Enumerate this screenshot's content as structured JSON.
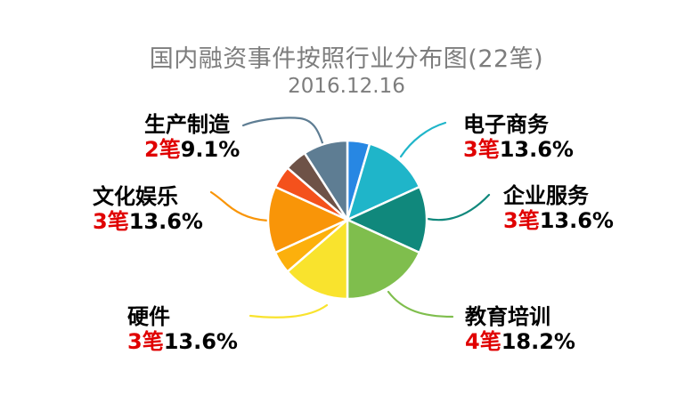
{
  "chart_data": {
    "type": "pie",
    "title": "国内融资事件按照行业分布图(22笔)",
    "subtitle": "2016.12.16",
    "total_count": 22,
    "unit": "笔",
    "legend_position": "outside-callout",
    "text_colors": {
      "title": "#7d7d7d",
      "label": "#000000",
      "count": "#e00000"
    },
    "slices": [
      {
        "label": "",
        "count": 1,
        "pct": "4.5%",
        "color": "#2787e3"
      },
      {
        "label": "电子商务",
        "count": 3,
        "pct": "13.6%",
        "color": "#1fb5c9"
      },
      {
        "label": "企业服务",
        "count": 3,
        "pct": "13.6%",
        "color": "#10887c"
      },
      {
        "label": "教育培训",
        "count": 4,
        "pct": "18.2%",
        "color": "#7fbe4d"
      },
      {
        "label": "硬件",
        "count": 3,
        "pct": "13.6%",
        "color": "#f9e32d"
      },
      {
        "label": "",
        "count": 1,
        "pct": "4.5%",
        "color": "#fcb00c"
      },
      {
        "label": "文化娱乐",
        "count": 3,
        "pct": "13.6%",
        "color": "#f99508"
      },
      {
        "label": "",
        "count": 1,
        "pct": "4.5%",
        "color": "#f4511c"
      },
      {
        "label": "",
        "count": 1,
        "pct": "4.5%",
        "color": "#6e5247"
      },
      {
        "label": "生产制造",
        "count": 2,
        "pct": "9.1%",
        "color": "#5e7d93"
      }
    ]
  },
  "labels": {
    "manufacturing": {
      "name": "生产制造",
      "count": "2笔",
      "pct": "9.1%"
    },
    "ecommerce": {
      "name": "电子商务",
      "count": "3笔",
      "pct": "13.6%"
    },
    "enterprise": {
      "name": "企业服务",
      "count": "3笔",
      "pct": "13.6%"
    },
    "education": {
      "name": "教育培训",
      "count": "4笔",
      "pct": "18.2%"
    },
    "hardware": {
      "name": "硬件",
      "count": "3笔",
      "pct": "13.6%"
    },
    "culture": {
      "name": "文化娱乐",
      "count": "3笔",
      "pct": "13.6%"
    }
  }
}
